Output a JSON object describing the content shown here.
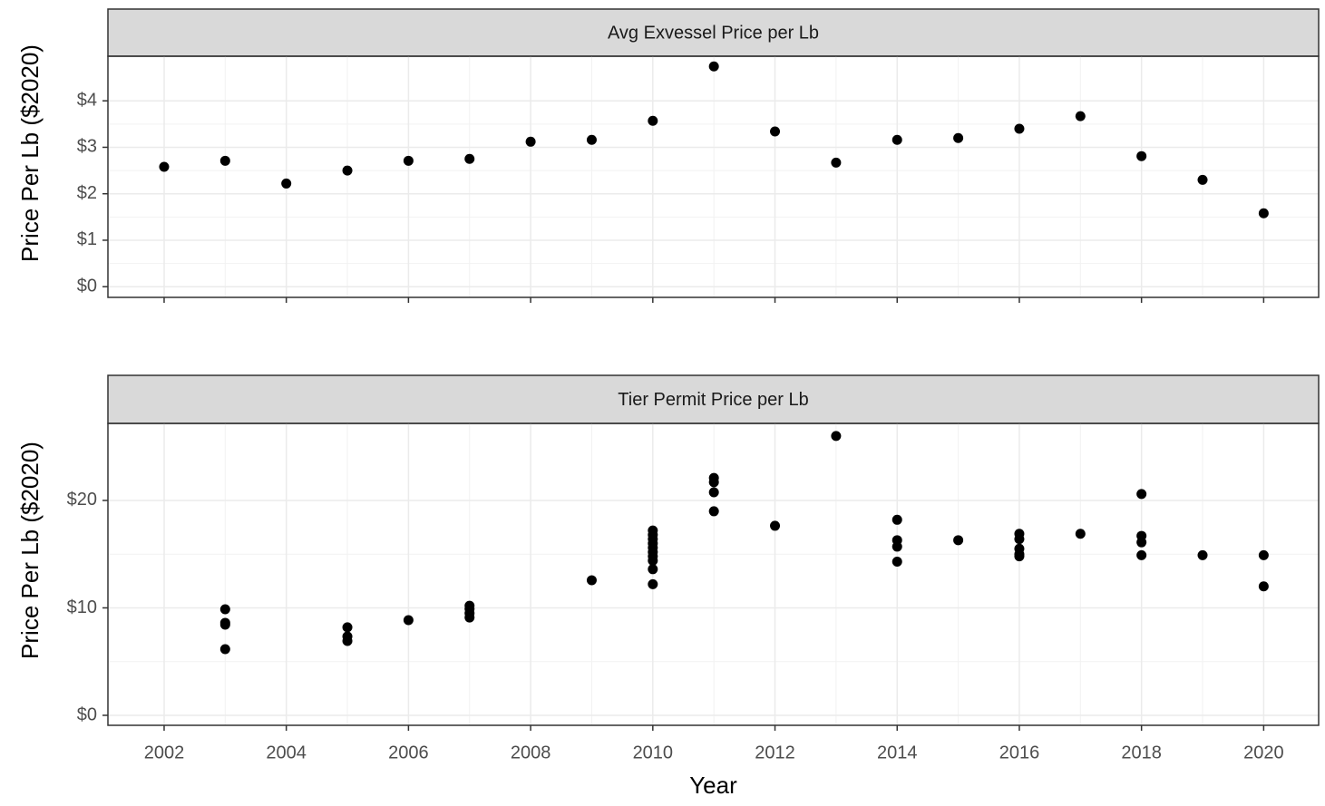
{
  "chart_data": [
    {
      "type": "scatter",
      "title": "Avg Exvessel Price per Lb",
      "y_label": "Price Per Lb ($2020)",
      "x": [
        2002,
        2003,
        2004,
        2005,
        2006,
        2007,
        2008,
        2009,
        2010,
        2011,
        2012,
        2013,
        2014,
        2015,
        2016,
        2017,
        2018,
        2019,
        2020
      ],
      "values": [
        2.58,
        2.71,
        2.22,
        2.5,
        2.71,
        2.75,
        3.12,
        3.16,
        3.57,
        4.74,
        3.34,
        2.67,
        3.16,
        3.2,
        3.4,
        3.67,
        2.81,
        2.3,
        1.58
      ],
      "color": "#000000",
      "xlim": [
        2001.08,
        2020.9
      ],
      "ylim": [
        -0.23,
        4.96
      ],
      "yticks": [
        {
          "value": 0,
          "label": "$0"
        },
        {
          "value": 1,
          "label": "$1"
        },
        {
          "value": 2,
          "label": "$2"
        },
        {
          "value": 3,
          "label": "$3"
        },
        {
          "value": 4,
          "label": "$4"
        }
      ],
      "grid": true,
      "minor_grid": true
    },
    {
      "type": "scatter",
      "title": "Tier Permit Price per Lb",
      "y_label": "Price Per Lb ($2020)",
      "x_label": "Year",
      "x": [
        2003,
        2003,
        2003,
        2003,
        2005,
        2005,
        2005,
        2006,
        2007,
        2007,
        2007,
        2007,
        2009,
        2010,
        2010,
        2010,
        2010,
        2010,
        2010,
        2010,
        2010,
        2010,
        2010,
        2011,
        2011,
        2011,
        2011,
        2012,
        2013,
        2014,
        2014,
        2014,
        2014,
        2015,
        2016,
        2016,
        2016,
        2016,
        2016,
        2017,
        2018,
        2018,
        2018,
        2018,
        2019,
        2020,
        2020
      ],
      "values": [
        9.87,
        8.61,
        8.44,
        6.16,
        8.19,
        7.34,
        6.92,
        8.86,
        10.2,
        9.9,
        9.5,
        9.1,
        12.57,
        17.2,
        16.8,
        16.4,
        16.0,
        15.6,
        15.2,
        14.8,
        14.4,
        13.6,
        12.2,
        22.1,
        21.7,
        20.76,
        18.99,
        17.64,
        26.0,
        18.2,
        16.3,
        15.7,
        14.3,
        16.3,
        16.9,
        16.4,
        15.5,
        15.0,
        14.8,
        16.9,
        20.6,
        16.7,
        16.1,
        14.9,
        14.9,
        14.9,
        12.0
      ],
      "color": "#000000",
      "xlim": [
        2001.08,
        2020.9
      ],
      "ylim": [
        -0.93,
        27.17
      ],
      "xticks": [
        2002,
        2004,
        2006,
        2008,
        2010,
        2012,
        2014,
        2016,
        2018,
        2020
      ],
      "yticks": [
        {
          "value": 0,
          "label": "$0"
        },
        {
          "value": 10,
          "label": "$10"
        },
        {
          "value": 20,
          "label": "$20"
        }
      ],
      "grid": true,
      "minor_grid": true
    }
  ]
}
